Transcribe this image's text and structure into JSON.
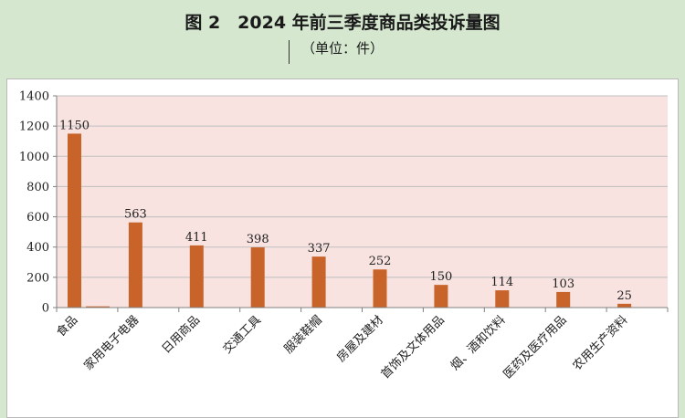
{
  "header": {
    "title": "图 2　2024 年前三季度商品类投诉量图",
    "unit": "（单位：件）"
  },
  "colors": {
    "page_bg": "#d5e8cf",
    "plot_bg": "#f8e3e0",
    "bar": "#c8632a",
    "grid": "#bfbfbf"
  },
  "chart_data": {
    "type": "bar",
    "categories": [
      "食品",
      "家用电子电器",
      "日用商品",
      "交通工具",
      "服装鞋帽",
      "房屋及建材",
      "首饰及文体用品",
      "烟、酒和饮料",
      "医药及医疗用品",
      "农用生产资料"
    ],
    "values": [
      1150,
      563,
      411,
      398,
      337,
      252,
      150,
      114,
      103,
      25
    ],
    "data_labels": [
      "1150",
      "563",
      "411",
      "398",
      "337",
      "252",
      "150",
      "114",
      "103",
      "25"
    ],
    "secondary_values": [
      8,
      0,
      0,
      0,
      0,
      0,
      0,
      0,
      0,
      0
    ],
    "ylim": [
      0,
      1400
    ],
    "yticks": [
      0,
      200,
      400,
      600,
      800,
      1000,
      1200,
      1400
    ],
    "ytick_labels": [
      "0",
      "200",
      "400",
      "600",
      "800",
      "1000",
      "1200",
      "1400"
    ],
    "xlabel": "",
    "ylabel": "",
    "grid": true,
    "legend": "none"
  }
}
